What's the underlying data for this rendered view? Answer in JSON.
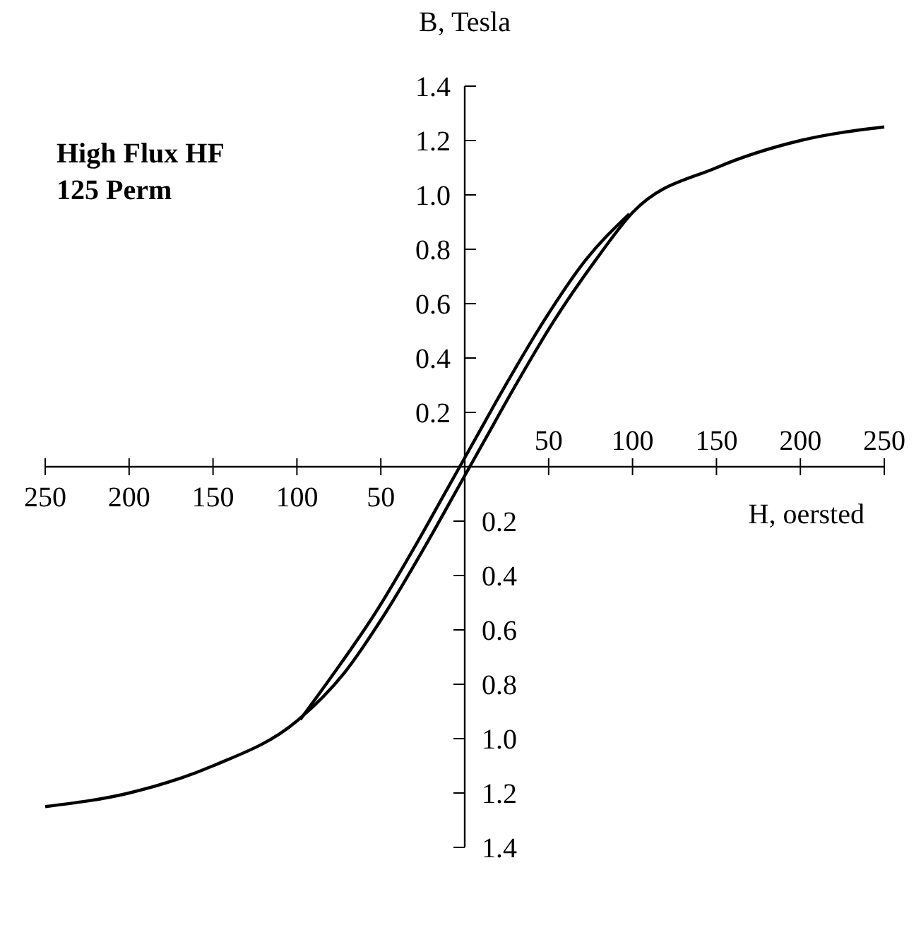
{
  "chart_data": {
    "type": "line",
    "title": "High Flux HF\n125 Perm",
    "xlabel": "H, oersted",
    "ylabel": "B, Tesla",
    "xlim": [
      -250,
      250
    ],
    "ylim": [
      -1.4,
      1.4
    ],
    "x2lim": [
      -250,
      250
    ],
    "y2lim": [
      -1.4,
      1.4
    ],
    "xticks": [
      {
        "value": -250,
        "label": "250"
      },
      {
        "value": -200,
        "label": "200"
      },
      {
        "value": -150,
        "label": "150"
      },
      {
        "value": -100,
        "label": "100"
      },
      {
        "value": -50,
        "label": "50"
      }
    ],
    "x2ticks": [
      50,
      100,
      150,
      200,
      250
    ],
    "yticks": [
      0.2,
      0.4,
      0.6,
      0.8,
      {
        "value": 1.0,
        "label": "1.0"
      },
      1.2,
      1.4
    ],
    "y2ticks": [
      {
        "value": -0.2,
        "label": "0.2"
      },
      {
        "value": -0.4,
        "label": "0.4"
      },
      {
        "value": -0.6,
        "label": "0.6"
      },
      {
        "value": -0.8,
        "label": "0.8"
      },
      {
        "value": -1.0,
        "label": "1.0"
      },
      {
        "value": -1.2,
        "label": "1.2"
      },
      {
        "value": -1.4,
        "label": "1.4"
      }
    ],
    "series": [
      {
        "color": "#000000",
        "x": [
          -250,
          -200,
          -150,
          -100,
          -72,
          -47,
          -22,
          -7,
          3,
          13,
          28,
          53,
          78,
          100,
          150,
          200,
          250
        ],
        "values": [
          -1.25,
          -1.2,
          -1.1,
          -0.935,
          -0.76,
          -0.535,
          -0.275,
          -0.11,
          0,
          0.11,
          0.275,
          0.535,
          0.76,
          0.935,
          1.1,
          1.2,
          1.25
        ]
      },
      {
        "color": "#000000",
        "x": [
          -98,
          -78,
          -53,
          -28,
          -13,
          -3,
          7,
          22,
          47,
          72,
          98
        ],
        "values": [
          -0.93,
          -0.76,
          -0.535,
          -0.275,
          -0.11,
          0,
          0.11,
          0.275,
          0.535,
          0.76,
          0.93
        ]
      }
    ]
  }
}
